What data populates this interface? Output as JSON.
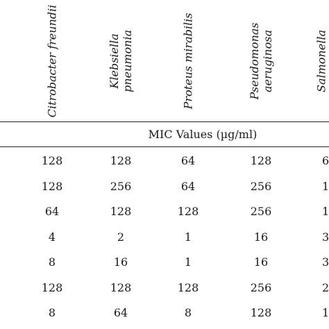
{
  "columns": [
    {
      "lines": [
        "Citrobacter freundii"
      ]
    },
    {
      "lines": [
        "Klebsiella",
        "pneumonia"
      ]
    },
    {
      "lines": [
        "Proteus mirabilis"
      ]
    },
    {
      "lines": [
        "Pseudomonas",
        "aeruginosa"
      ]
    },
    {
      "lines": [
        "Salmonella"
      ]
    }
  ],
  "subheader": "MIC Values (µg/ml)",
  "rows": [
    [
      "128",
      "128",
      "64",
      "128",
      "6"
    ],
    [
      "128",
      "256",
      "64",
      "256",
      "1"
    ],
    [
      "64",
      "128",
      "128",
      "256",
      "1"
    ],
    [
      "4",
      "2",
      "1",
      "16",
      "3"
    ],
    [
      "8",
      "16",
      "1",
      "16",
      "3"
    ],
    [
      "128",
      "128",
      "128",
      "256",
      "2"
    ],
    [
      "8",
      "64",
      "8",
      "128",
      "1"
    ]
  ]
}
